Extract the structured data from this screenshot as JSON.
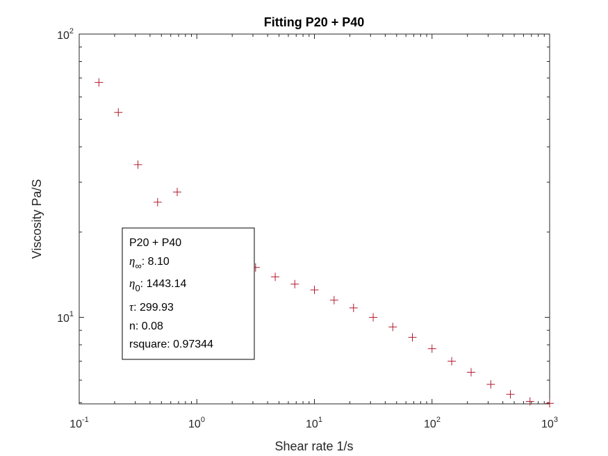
{
  "chart_data": {
    "type": "scatter",
    "title": "Fitting P20 + P40",
    "xlabel": "Shear rate 1/s",
    "ylabel": "Viscosity Pa/S",
    "xscale": "log",
    "yscale": "log",
    "xlim": [
      0.1,
      1000
    ],
    "ylim": [
      4.95,
      100
    ],
    "x_ticks": [
      {
        "base": "10",
        "exp": "-1"
      },
      {
        "base": "10",
        "exp": "0"
      },
      {
        "base": "10",
        "exp": "1"
      },
      {
        "base": "10",
        "exp": "2"
      },
      {
        "base": "10",
        "exp": "3"
      }
    ],
    "y_ticks": [
      {
        "base": "10",
        "exp": "1"
      },
      {
        "base": "10",
        "exp": "2"
      }
    ],
    "grid": false,
    "series": [
      {
        "kind": "markers",
        "marker": "+",
        "color": "#b2182b",
        "x": [
          0.147,
          0.215,
          0.316,
          0.464,
          0.681,
          1.0,
          1.47,
          2.15,
          3.16,
          4.64,
          6.81,
          10.0,
          14.7,
          21.5,
          31.6,
          46.4,
          68.1,
          100,
          147,
          215,
          316,
          464,
          681,
          1000
        ],
        "y": [
          67.5,
          52.9,
          34.6,
          25.5,
          27.7,
          18.4,
          17.3,
          15.7,
          15.0,
          13.9,
          13.1,
          12.5,
          11.5,
          10.8,
          10.0,
          9.25,
          8.5,
          7.75,
          7.0,
          6.4,
          5.8,
          5.35,
          5.05,
          4.97
        ]
      },
      {
        "kind": "fit-line",
        "color": "#d95319",
        "model": "cross",
        "params": {
          "eta_inf": 8.1,
          "eta_0": 1443.14,
          "tau": 299.93,
          "n": 0.08
        }
      }
    ],
    "legend": {
      "placement": "middle-left",
      "name": "P20 + P40",
      "eta_inf": {
        "symbol": "η",
        "sub": "∞",
        "text": ": 8.10"
      },
      "eta_0": {
        "symbol": "η",
        "sub": "0",
        "text": ": 1443.14"
      },
      "tau": {
        "symbol": "τ",
        "text": ": 299.93"
      },
      "n": "n: 0.08",
      "rsquare": "rsquare: 0.97344"
    }
  }
}
